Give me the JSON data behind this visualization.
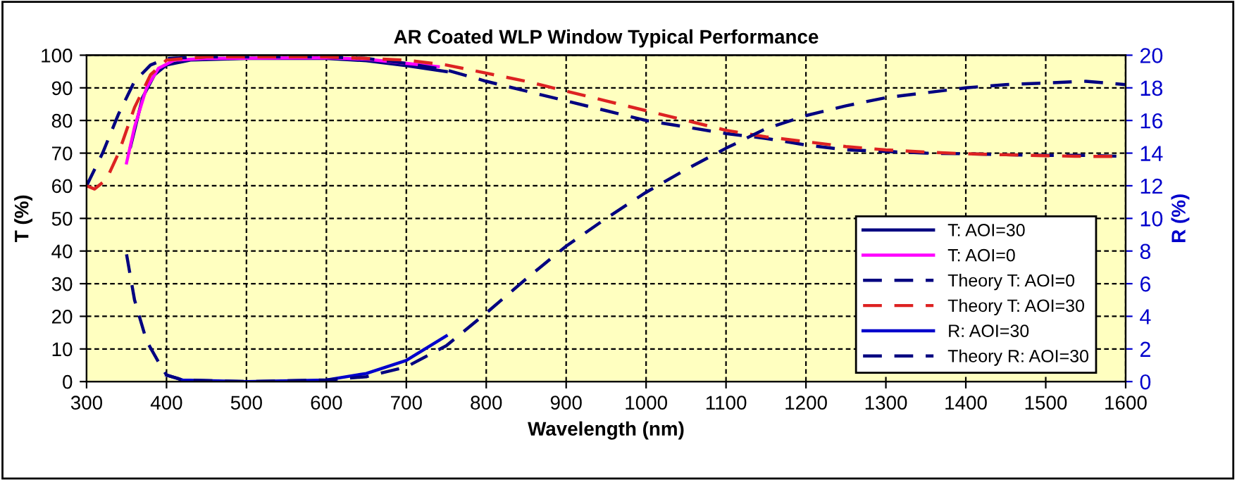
{
  "chart_data": {
    "type": "line",
    "title": "AR Coated WLP Window Typical Performance",
    "xlabel": "Wavelength (nm)",
    "ylabel": "T (%)",
    "y2label": "R (%)",
    "xlim": [
      300,
      1600
    ],
    "xticks": [
      300,
      400,
      500,
      600,
      700,
      800,
      900,
      1000,
      1100,
      1200,
      1300,
      1400,
      1500,
      1600
    ],
    "ylim": [
      0,
      100
    ],
    "yticks": [
      0,
      10,
      20,
      30,
      40,
      50,
      60,
      70,
      80,
      90,
      100
    ],
    "y2lim": [
      0,
      20
    ],
    "y2ticks": [
      0,
      2,
      4,
      6,
      8,
      10,
      12,
      14,
      16,
      18,
      20
    ],
    "grid": true,
    "legend": "bottom right",
    "marker": "none",
    "series": [
      {
        "name": "T: AOI=30",
        "color": "#000080",
        "line_style": "solid",
        "x": [
          355,
          370,
          385,
          400,
          430,
          500,
          600,
          650,
          700,
          750
        ],
        "values": [
          72,
          87,
          94,
          97,
          98.5,
          99,
          99,
          98.3,
          96.8,
          95
        ]
      },
      {
        "name": "T: AOI=0",
        "color": "#ff00ff",
        "line_style": "solid",
        "x": [
          350,
          360,
          375,
          390,
          410,
          450,
          600,
          650,
          700,
          740
        ],
        "values": [
          67,
          78,
          90,
          96,
          98.5,
          99,
          99.2,
          98.8,
          97.5,
          96.5
        ]
      },
      {
        "name": "Theory T: AOI=0",
        "color": "#000080",
        "line_style": "dashed",
        "x": [
          300,
          320,
          340,
          360,
          380,
          400,
          450,
          600,
          650,
          700,
          750,
          800,
          850,
          900,
          950,
          1000,
          1050,
          1100,
          1150,
          1200,
          1250,
          1300,
          1350,
          1400,
          1450,
          1500,
          1550,
          1600
        ],
        "values": [
          60,
          70,
          82,
          92,
          97,
          99,
          99.5,
          99.5,
          99,
          97.5,
          95.5,
          92,
          89,
          86,
          83,
          80,
          78,
          76,
          74.5,
          72.5,
          71,
          70.5,
          70,
          69.8,
          69.5,
          69.3,
          69.3,
          69
        ]
      },
      {
        "name": "Theory T: AOI=30",
        "color": "#dd2222",
        "line_style": "dashed",
        "x": [
          300,
          310,
          325,
          340,
          360,
          380,
          400,
          450,
          600,
          700,
          750,
          800,
          850,
          900,
          950,
          1000,
          1050,
          1100,
          1150,
          1200,
          1250,
          1300,
          1350,
          1400,
          1450,
          1500,
          1550,
          1600
        ],
        "values": [
          60,
          59,
          62,
          70,
          84,
          94,
          98.5,
          99.5,
          99.5,
          98.5,
          97,
          94.5,
          92,
          89,
          86,
          83,
          80,
          77,
          75,
          73.5,
          72,
          71,
          70.3,
          69.8,
          69.5,
          69.2,
          69,
          69
        ]
      },
      {
        "name": "R: AOI=30",
        "color": "#0000cc",
        "line_style": "solid",
        "axis": "y2",
        "x": [
          400,
          420,
          500,
          600,
          650,
          700,
          750
        ],
        "values": [
          0.4,
          0.1,
          0,
          0.1,
          0.5,
          1.3,
          2.8
        ]
      },
      {
        "name": "Theory R: AOI=30",
        "color": "#000080",
        "line_style": "dashed",
        "axis": "y2",
        "x": [
          350,
          360,
          375,
          390,
          400,
          420,
          500,
          600,
          650,
          700,
          750,
          800,
          850,
          900,
          950,
          1000,
          1050,
          1100,
          1150,
          1200,
          1250,
          1300,
          1350,
          1400,
          1450,
          1500,
          1550,
          1600
        ],
        "values": [
          7.8,
          5,
          2.5,
          1.2,
          0.4,
          0.1,
          0,
          0.1,
          0.3,
          0.9,
          2.2,
          4.2,
          6.3,
          8.3,
          10,
          11.6,
          13,
          14.3,
          15.5,
          16.3,
          16.9,
          17.4,
          17.7,
          18,
          18.2,
          18.3,
          18.4,
          18.2
        ]
      }
    ]
  }
}
